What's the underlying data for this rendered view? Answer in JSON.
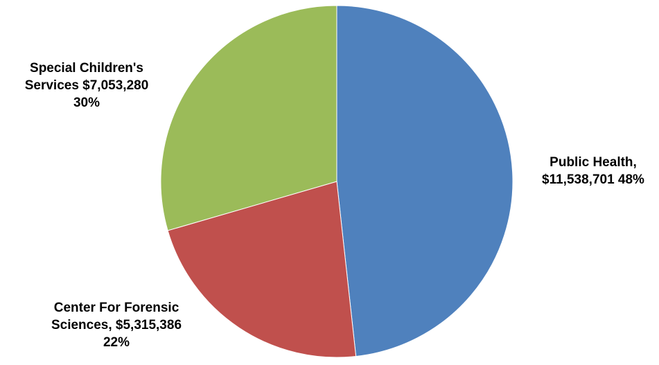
{
  "chart_data": {
    "type": "pie",
    "title": "",
    "slices": [
      {
        "name": "Public Health",
        "value": 11538701,
        "percent": 48,
        "color": "#4F81BD",
        "label_lines": [
          "Public Health,",
          "$11,538,701 48%"
        ]
      },
      {
        "name": "Center For Forensic Sciences",
        "value": 5315386,
        "percent": 22,
        "color": "#C0504D",
        "label_lines": [
          "Center For Forensic",
          "Sciences, $5,315,386",
          "22%"
        ]
      },
      {
        "name": "Special Children's Services",
        "value": 7053280,
        "percent": 30,
        "color": "#9BBB59",
        "label_lines": [
          "Special Children's",
          "Services $7,053,280",
          "30%"
        ]
      }
    ],
    "start_angle_deg": 0,
    "direction": "clockwise",
    "legend": "none"
  }
}
